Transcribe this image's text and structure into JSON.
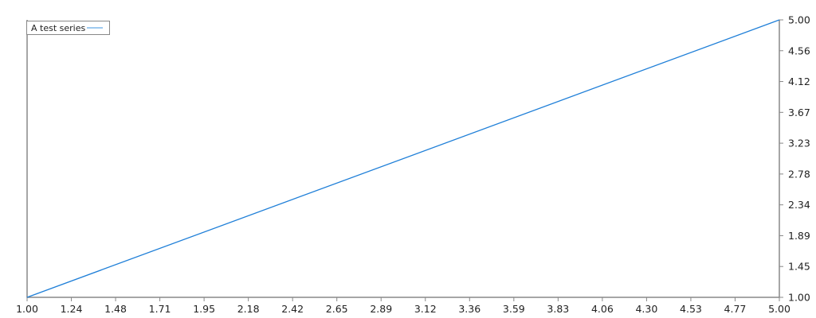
{
  "chart_data": {
    "type": "line",
    "title": "",
    "xlabel": "",
    "ylabel": "",
    "xlim": [
      1,
      5
    ],
    "ylim": [
      1,
      5
    ],
    "grid": false,
    "legend_placement": "top-left",
    "y_axis_side": "right",
    "x_ticks": [
      "1.00",
      "1.24",
      "1.48",
      "1.71",
      "1.95",
      "2.18",
      "2.42",
      "2.65",
      "2.89",
      "3.12",
      "3.36",
      "3.59",
      "3.83",
      "4.06",
      "4.30",
      "4.53",
      "4.77",
      "5.00"
    ],
    "y_ticks": [
      "1.00",
      "1.45",
      "1.89",
      "2.34",
      "2.78",
      "3.23",
      "3.67",
      "4.12",
      "4.56",
      "5.00"
    ],
    "series": [
      {
        "name": "A test series",
        "color": "#1f7fd8",
        "x": [
          1,
          5
        ],
        "y": [
          1,
          5
        ]
      }
    ],
    "axis_color": "#888888"
  }
}
